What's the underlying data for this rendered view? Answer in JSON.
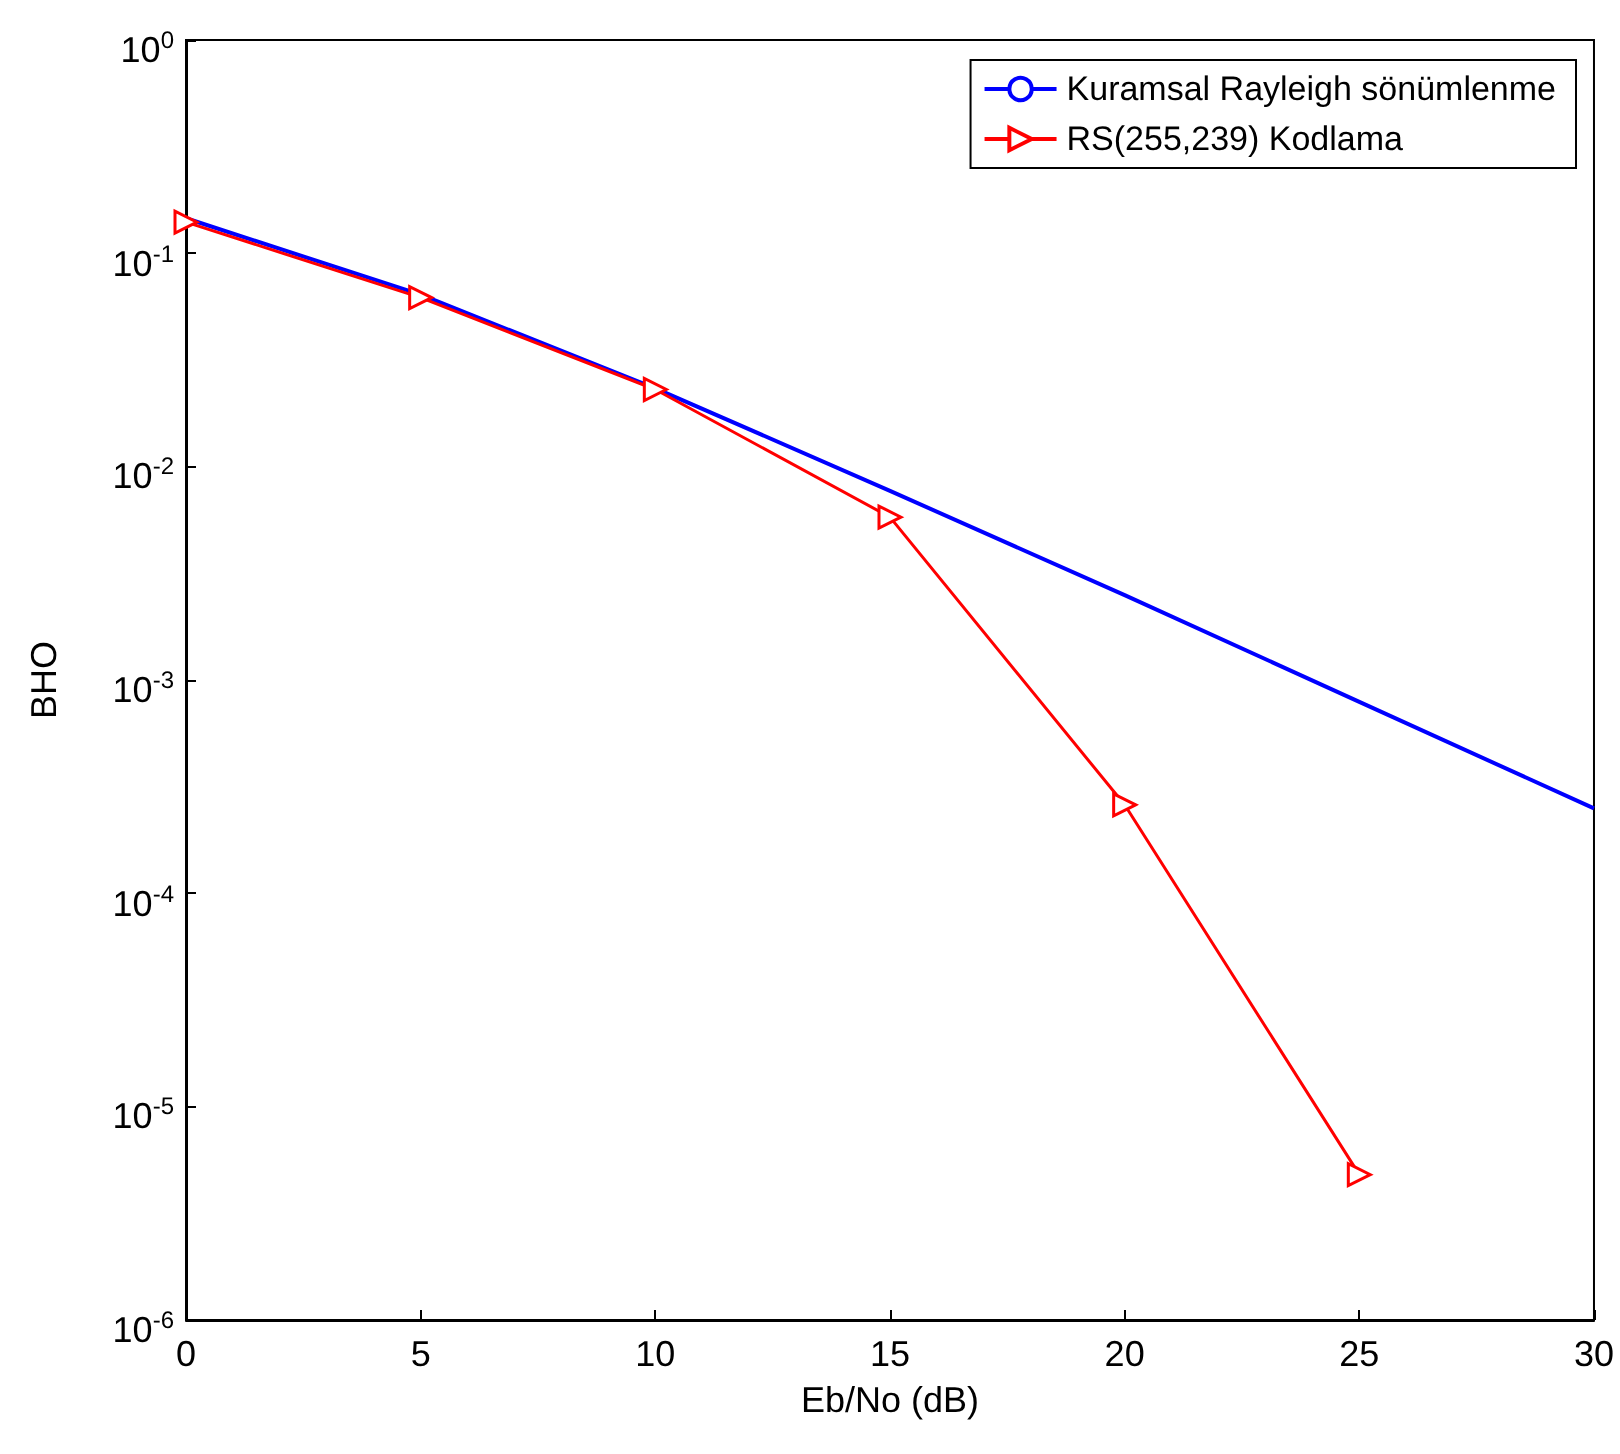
{
  "chart_data": {
    "type": "line",
    "xlabel": "Eb/No (dB)",
    "ylabel": "BHO",
    "x": [
      0,
      5,
      10,
      15,
      20,
      25,
      30
    ],
    "series": [
      {
        "name": "Kuramsal Rayleigh sönümlenme",
        "color": "#0000ff",
        "marker": "none",
        "values": [
          0.146,
          0.064,
          0.0233,
          0.0077,
          0.0025,
          0.00079,
          0.00025
        ]
      },
      {
        "name": "RS(255,239) Kodlama",
        "color": "#ff0000",
        "marker": "triangle",
        "x": [
          0,
          5,
          10,
          15,
          20,
          25
        ],
        "values": [
          0.14,
          0.062,
          0.023,
          0.0058,
          0.00026,
          4.8e-06
        ]
      }
    ],
    "log": "y",
    "xlim": [
      0,
      30
    ],
    "xticks": [
      0,
      5,
      10,
      15,
      20,
      25,
      30
    ],
    "ylim": [
      1e-06,
      1
    ],
    "yticks": [
      {
        "value": 1e-06,
        "label": "10$^{-6}$"
      },
      {
        "value": 1e-05,
        "label": "10$^{-5}$"
      },
      {
        "value": 0.0001,
        "label": "10$^{-4}$"
      },
      {
        "value": 0.001,
        "label": "10$^{-3}$"
      },
      {
        "value": 0.01,
        "label": "10$^{-2}$"
      },
      {
        "value": 0.1,
        "label": "10$^{-1}$"
      },
      {
        "value": 1,
        "label": "10$^{0}$"
      }
    ],
    "grid": false,
    "legend": "top right"
  }
}
